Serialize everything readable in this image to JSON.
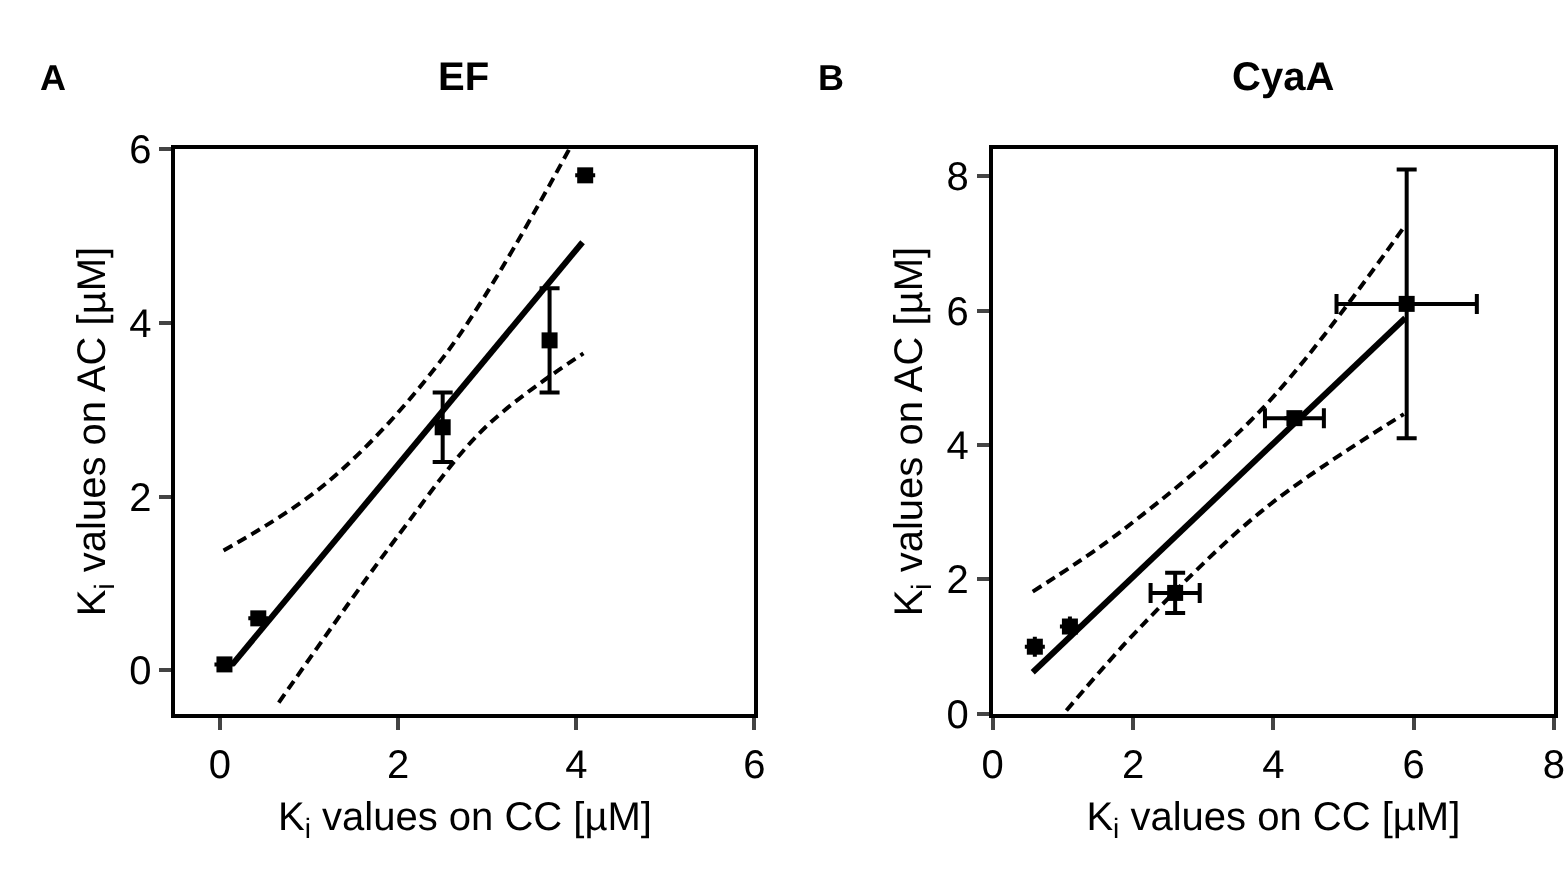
{
  "chart_data": [
    {
      "type": "scatter",
      "title": "EF",
      "annotations": [
        "A"
      ],
      "xlabel": "K$_{i}$ values on CC [µM]",
      "ylabel": "K$_{i}$ values on AC [µM]",
      "xlim": [
        -0.5,
        6
      ],
      "ylim": [
        -0.5,
        6
      ],
      "xticks": [
        0,
        2,
        4,
        6
      ],
      "yticks": [
        0,
        2,
        4,
        6
      ],
      "legend": false,
      "series": [
        {
          "color": "#000000",
          "marker": "square",
          "x": [
            0.05,
            0.43,
            2.5,
            3.7,
            4.1
          ],
          "values": [
            0.07,
            0.6,
            2.8,
            3.8,
            5.7
          ],
          "errors": [
            null,
            null,
            0.4,
            0.6,
            null
          ]
        },
        {
          "type": "line",
          "color": "#000000",
          "marker": "none",
          "line_style": "solid",
          "x": [
            0.14,
            4.07
          ],
          "values": [
            0.07,
            4.93
          ]
        },
        {
          "type": "line",
          "color": "#000000",
          "marker": "none",
          "line_style": "dashed",
          "x": [
            0.04,
            1.21,
            2.54,
            3.92
          ],
          "values": [
            1.38,
            2.17,
            3.65,
            6.0
          ]
        },
        {
          "type": "line",
          "color": "#000000",
          "marker": "none",
          "line_style": "dashed",
          "x": [
            0.66,
            2.02,
            2.98,
            4.08
          ],
          "values": [
            -0.37,
            1.58,
            2.8,
            3.65
          ]
        }
      ]
    },
    {
      "type": "scatter",
      "title": "CyaA",
      "annotations": [
        "B"
      ],
      "xlabel": "K$_{i}$ values on CC [µM]",
      "ylabel": "K$_{i}$ values on AC [µM]",
      "xlim": [
        0,
        8
      ],
      "ylim": [
        0,
        8.4
      ],
      "xticks": [
        0,
        2,
        4,
        6,
        8
      ],
      "yticks": [
        0,
        2,
        4,
        6,
        8
      ],
      "legend": false,
      "series": [
        {
          "color": "#000000",
          "marker": "square",
          "x": [
            0.6,
            1.1,
            2.6,
            4.3,
            5.9
          ],
          "values": [
            1.0,
            1.3,
            1.8,
            4.4,
            6.1
          ],
          "errors": [
            null,
            null,
            0.3,
            null,
            2.0
          ],
          "xerrors": [
            null,
            null,
            0.35,
            0.42,
            1.0
          ]
        },
        {
          "type": "line",
          "color": "#000000",
          "marker": "none",
          "line_style": "solid",
          "x": [
            0.57,
            5.88
          ],
          "values": [
            0.62,
            5.89
          ]
        },
        {
          "type": "line",
          "color": "#000000",
          "marker": "none",
          "line_style": "dashed",
          "x": [
            0.57,
            1.86,
            3.86,
            5.86
          ],
          "values": [
            1.82,
            2.74,
            4.56,
            7.24
          ]
        },
        {
          "type": "line",
          "color": "#000000",
          "marker": "none",
          "line_style": "dashed",
          "x": [
            1.05,
            2.14,
            3.86,
            5.86
          ],
          "values": [
            0.05,
            1.33,
            3.04,
            4.46
          ]
        }
      ]
    }
  ]
}
